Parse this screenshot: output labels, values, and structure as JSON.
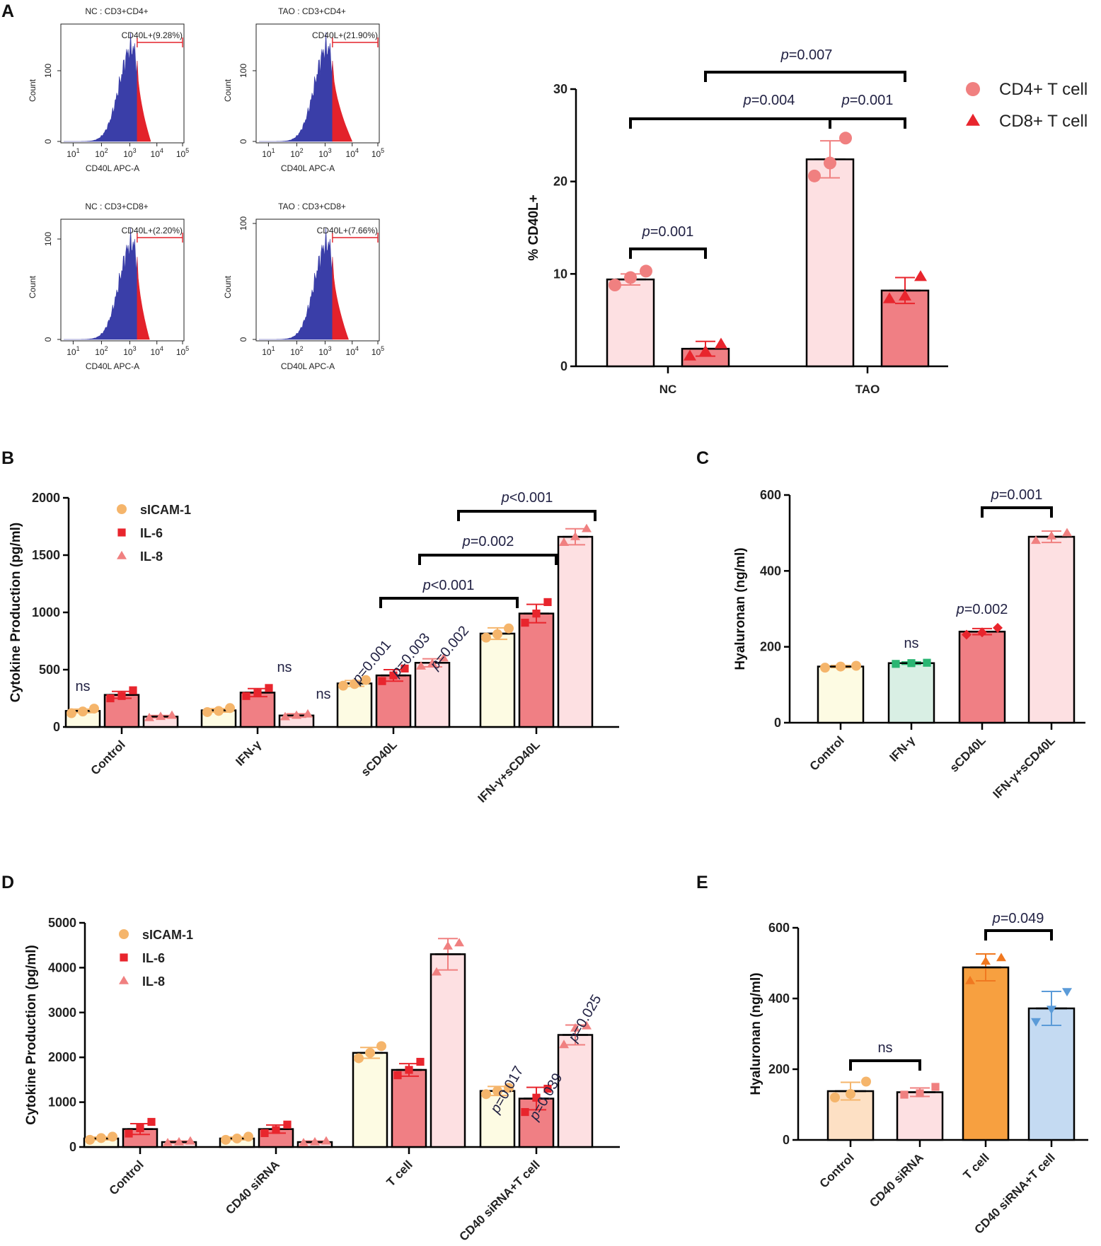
{
  "colors": {
    "sicam": "#f5b56b",
    "il6": "#e8252d",
    "il8": "#f08080",
    "cd4": "#f08080",
    "cd8": "#e8252d",
    "bar_yellow": "#fdfbe3",
    "bar_red": "#f07f84",
    "bar_pink": "#fde0e2",
    "bar_green": "#d9efe4",
    "bar_orange": "#f7a040",
    "bar_blue": "#c4daf2",
    "bar_peach": "#fde0c4",
    "marker_green": "#2bb673",
    "marker_blue": "#5b9bd8",
    "marker_orange": "#f07820",
    "flow_blue": "#3a3ea8",
    "flow_red": "#e3222b"
  },
  "panel_letters": [
    "A",
    "B",
    "C",
    "D",
    "E"
  ],
  "chart_data": [
    {
      "id": "A-flow",
      "type": "histogram",
      "plots": [
        {
          "title": "NC : CD3+CD4+",
          "gate_label": "CD40L+(9.28%)"
        },
        {
          "title": "TAO : CD3+CD4+",
          "gate_label": "CD40L+(21.90%)"
        },
        {
          "title": "NC : CD3+CD8+",
          "gate_label": "CD40L+(2.20%)"
        },
        {
          "title": "TAO : CD3+CD8+",
          "gate_label": "CD40L+(7.66%)"
        }
      ],
      "xlabel": "CD40L APC-A",
      "ylabel": "Count",
      "x_ticks": [
        "10",
        "10",
        "10",
        "10",
        "10"
      ],
      "x_tick_exponents": [
        "1",
        "2",
        "3",
        "4",
        "5"
      ],
      "y_ticks_top": [
        "0",
        "100"
      ],
      "y_ticks_bottom": [
        "0",
        "100"
      ]
    },
    {
      "id": "A-bar",
      "type": "bar",
      "categories": [
        "NC",
        "TAO"
      ],
      "series": [
        {
          "name": "CD4+ T cell",
          "marker": "circle",
          "values": [
            9.4,
            22.4
          ],
          "sd": [
            0.6,
            2.0
          ],
          "points": [
            [
              8.8,
              9.6,
              10.3
            ],
            [
              20.6,
              22.0,
              24.7
            ]
          ]
        },
        {
          "name": "CD8+ T cell",
          "marker": "triangle",
          "values": [
            1.9,
            8.2
          ],
          "sd": [
            0.8,
            1.4
          ],
          "points": [
            [
              1.1,
              1.6,
              2.4
            ],
            [
              7.3,
              7.6,
              9.7
            ]
          ]
        }
      ],
      "ylabel": "% CD40L+",
      "ylim": [
        0,
        30
      ],
      "yticks": [
        0,
        10,
        20,
        30
      ],
      "annotations": [
        {
          "prefix": "p",
          "text": "=0.001"
        },
        {
          "prefix": "p",
          "text": "=0.004"
        },
        {
          "prefix": "p",
          "text": "=0.001"
        },
        {
          "prefix": "p",
          "text": "=0.007"
        }
      ]
    },
    {
      "id": "B",
      "type": "bar",
      "categories": [
        "Control",
        "IFN-γ",
        "sCD40L",
        "IFN-γ+sCD40L"
      ],
      "series": [
        {
          "name": "sICAM-1",
          "values": [
            140,
            145,
            380,
            815
          ],
          "sd": [
            15,
            15,
            25,
            50
          ],
          "points": [
            [
              120,
              135,
              160
            ],
            [
              130,
              140,
              165
            ],
            [
              360,
              375,
              410
            ],
            [
              780,
              810,
              860
            ]
          ]
        },
        {
          "name": "IL-6",
          "values": [
            280,
            300,
            450,
            990
          ],
          "sd": [
            30,
            35,
            50,
            80
          ],
          "points": [
            [
              250,
              270,
              320
            ],
            [
              270,
              295,
              340
            ],
            [
              400,
              450,
              510
            ],
            [
              910,
              990,
              1090
            ]
          ]
        },
        {
          "name": "IL-8",
          "values": [
            90,
            100,
            560,
            1660
          ],
          "sd": [
            10,
            15,
            35,
            70
          ],
          "points": [
            [
              80,
              90,
              100
            ],
            [
              88,
              100,
              112
            ],
            [
              530,
              555,
              600
            ],
            [
              1610,
              1660,
              1730
            ]
          ]
        }
      ],
      "ylabel": "Cytokine Production (pg/ml)",
      "ylim": [
        0,
        2000
      ],
      "yticks": [
        0,
        500,
        1000,
        1500,
        2000
      ],
      "annotations": [
        {
          "text": "ns"
        },
        {
          "text": "ns"
        },
        {
          "text": "ns"
        },
        {
          "prefix": "p",
          "text": "=0.001"
        },
        {
          "prefix": "p",
          "text": "=0.003"
        },
        {
          "prefix": "p",
          "text": "=0.002"
        },
        {
          "prefix": "p",
          "text": "<0.001"
        },
        {
          "prefix": "p",
          "text": "=0.002"
        },
        {
          "prefix": "p",
          "text": "<0.001"
        }
      ]
    },
    {
      "id": "C",
      "type": "bar",
      "categories": [
        "Control",
        "IFN-γ",
        "sCD40L",
        "IFN-γ+sCD40L"
      ],
      "values": [
        148,
        157,
        240,
        490
      ],
      "sd": [
        3,
        3,
        8,
        15
      ],
      "points": [
        [
          145,
          148,
          150
        ],
        [
          155,
          157,
          158
        ],
        [
          232,
          238,
          250
        ],
        [
          480,
          492,
          500
        ]
      ],
      "ylabel": "Hyaluronan (ng/ml)",
      "ylim": [
        0,
        600
      ],
      "yticks": [
        0,
        200,
        400,
        600
      ],
      "annotations": [
        {
          "text": "ns"
        },
        {
          "prefix": "p",
          "text": "=0.002"
        },
        {
          "prefix": "p",
          "text": "=0.001"
        }
      ]
    },
    {
      "id": "D",
      "type": "bar",
      "categories": [
        "Control",
        "CD40 siRNA",
        "T cell",
        "CD40 siRNA+T cell"
      ],
      "series": [
        {
          "name": "sICAM-1",
          "values": [
            190,
            190,
            2100,
            1250
          ],
          "sd": [
            30,
            30,
            120,
            100
          ],
          "points": [
            [
              160,
              200,
              230
            ],
            [
              160,
              190,
              230
            ],
            [
              1980,
              2100,
              2250
            ],
            [
              1180,
              1250,
              1320
            ]
          ]
        },
        {
          "name": "IL-6",
          "values": [
            400,
            400,
            1720,
            1080
          ],
          "sd": [
            120,
            90,
            140,
            250
          ],
          "points": [
            [
              300,
              420,
              560
            ],
            [
              310,
              380,
              500
            ],
            [
              1600,
              1720,
              1900
            ],
            [
              780,
              1100,
              1300
            ]
          ]
        },
        {
          "name": "IL-8",
          "values": [
            110,
            110,
            4300,
            2500
          ],
          "sd": [
            25,
            25,
            350,
            220
          ],
          "points": [
            [
              90,
              110,
              130
            ],
            [
              90,
              110,
              130
            ],
            [
              3900,
              4480,
              4550
            ],
            [
              2280,
              2650,
              2700
            ]
          ]
        }
      ],
      "ylabel": "Cytokine Production (pg/ml)",
      "ylim": [
        0,
        5000
      ],
      "yticks": [
        0,
        1000,
        2000,
        3000,
        4000,
        5000
      ],
      "annotations": [
        {
          "prefix": "p",
          "text": "=0.017"
        },
        {
          "prefix": "p",
          "text": "=0.039"
        },
        {
          "prefix": "p",
          "text": "=0.025"
        }
      ]
    },
    {
      "id": "E",
      "type": "bar",
      "categories": [
        "Control",
        "CD40 siRNA",
        "T cell",
        "CD40 siRNA+T cell"
      ],
      "values": [
        138,
        135,
        488,
        372
      ],
      "sd": [
        25,
        12,
        38,
        48
      ],
      "points": [
        [
          120,
          130,
          165
        ],
        [
          128,
          132,
          150
        ],
        [
          450,
          505,
          515
        ],
        [
          335,
          370,
          420
        ]
      ],
      "ylabel": "Hyaluronan (ng/ml)",
      "ylim": [
        0,
        600
      ],
      "yticks": [
        0,
        200,
        400,
        600
      ],
      "annotations": [
        {
          "text": "ns"
        },
        {
          "prefix": "p",
          "text": "=0.049"
        }
      ]
    }
  ]
}
